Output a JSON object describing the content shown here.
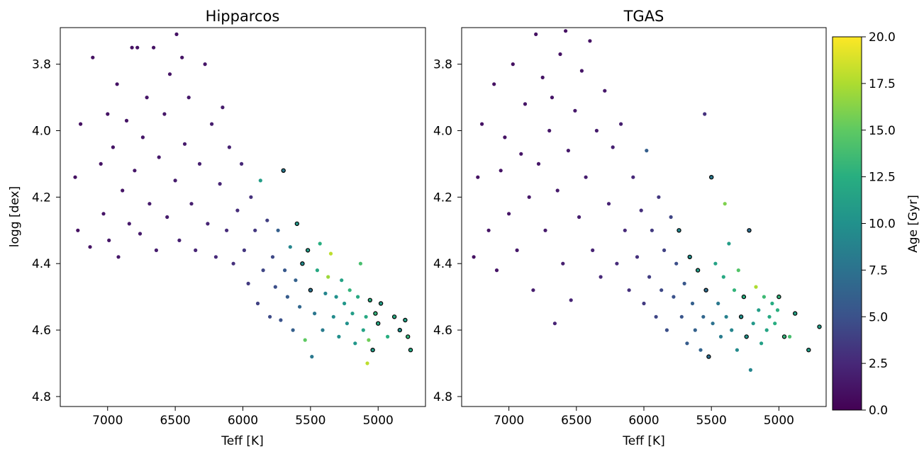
{
  "chart_data": [
    {
      "type": "scatter",
      "title": "Hipparcos",
      "xlabel": "Teff [K]",
      "ylabel": "logg [dex]",
      "xlim": [
        7350,
        4650
      ],
      "ylim": [
        4.83,
        3.69
      ],
      "x_ticks": [
        7000,
        6500,
        6000,
        5500,
        5000
      ],
      "x_tick_labels": [
        "7000",
        "6500",
        "6000",
        "5500",
        "5000"
      ],
      "y_ticks": [
        3.8,
        4.0,
        4.2,
        4.4,
        4.6,
        4.8
      ],
      "y_tick_labels": [
        "3.8",
        "4.0",
        "4.2",
        "4.4",
        "4.6",
        "4.8"
      ],
      "grid": false,
      "color_by": "Age [Gyr]",
      "outlined_points": "black edge",
      "points": [
        [
          7240,
          4.14,
          1.0
        ],
        [
          7220,
          4.3,
          1.0
        ],
        [
          7200,
          3.98,
          1.0
        ],
        [
          7130,
          4.35,
          1.2
        ],
        [
          7110,
          3.78,
          1.0
        ],
        [
          7050,
          4.1,
          1.2
        ],
        [
          7030,
          4.25,
          1.3
        ],
        [
          7000,
          3.95,
          1.1
        ],
        [
          6990,
          4.33,
          1.4
        ],
        [
          6960,
          4.05,
          1.2
        ],
        [
          6930,
          3.86,
          1.1
        ],
        [
          6920,
          4.38,
          1.4
        ],
        [
          6890,
          4.18,
          1.3
        ],
        [
          6860,
          3.97,
          1.2
        ],
        [
          6840,
          4.28,
          1.5
        ],
        [
          6820,
          3.75,
          1.0
        ],
        [
          6800,
          4.12,
          1.4
        ],
        [
          6780,
          3.75,
          1.1
        ],
        [
          6760,
          4.31,
          1.6
        ],
        [
          6740,
          4.02,
          1.4
        ],
        [
          6710,
          3.9,
          1.3
        ],
        [
          6690,
          4.22,
          1.6
        ],
        [
          6660,
          3.75,
          1.1
        ],
        [
          6640,
          4.36,
          1.8
        ],
        [
          6620,
          4.08,
          1.5
        ],
        [
          6580,
          3.95,
          1.4
        ],
        [
          6560,
          4.26,
          1.7
        ],
        [
          6540,
          3.83,
          1.3
        ],
        [
          6500,
          4.15,
          1.7
        ],
        [
          6490,
          3.71,
          1.1
        ],
        [
          6470,
          4.33,
          2.0
        ],
        [
          6450,
          3.78,
          1.2
        ],
        [
          6430,
          4.04,
          1.6
        ],
        [
          6400,
          3.9,
          1.5
        ],
        [
          6380,
          4.22,
          1.9
        ],
        [
          6350,
          4.36,
          2.3
        ],
        [
          6320,
          4.1,
          1.9
        ],
        [
          6280,
          3.8,
          1.3
        ],
        [
          6260,
          4.28,
          2.3
        ],
        [
          6230,
          3.98,
          1.8
        ],
        [
          6200,
          4.38,
          2.6
        ],
        [
          6170,
          4.16,
          2.3
        ],
        [
          6150,
          3.93,
          1.7
        ],
        [
          6120,
          4.3,
          2.7
        ],
        [
          6100,
          4.05,
          2.1
        ],
        [
          6070,
          4.4,
          3.0
        ],
        [
          6040,
          4.24,
          2.8
        ],
        [
          6010,
          4.1,
          2.5
        ],
        [
          5990,
          4.36,
          3.3
        ],
        [
          5960,
          4.46,
          3.6
        ],
        [
          5940,
          4.2,
          3.0
        ],
        [
          5910,
          4.3,
          3.4
        ],
        [
          5890,
          4.52,
          4.0
        ],
        [
          5870,
          4.15,
          11.0
        ],
        [
          5850,
          4.42,
          4.2
        ],
        [
          5820,
          4.27,
          3.8
        ],
        [
          5800,
          4.56,
          4.5
        ],
        [
          5780,
          4.38,
          4.4
        ],
        [
          5760,
          4.47,
          4.8
        ],
        [
          5740,
          4.3,
          6.0
        ],
        [
          5720,
          4.57,
          5.0
        ],
        [
          5700,
          4.12,
          8.0
        ],
        [
          5690,
          4.42,
          5.5
        ],
        [
          5670,
          4.5,
          5.8
        ],
        [
          5650,
          4.35,
          9.0
        ],
        [
          5630,
          4.6,
          6.0
        ],
        [
          5610,
          4.45,
          6.2
        ],
        [
          5600,
          4.28,
          10.5
        ],
        [
          5580,
          4.53,
          6.6
        ],
        [
          5560,
          4.4,
          9.5
        ],
        [
          5540,
          4.63,
          15.0
        ],
        [
          5520,
          4.36,
          11.0
        ],
        [
          5500,
          4.48,
          7.5
        ],
        [
          5490,
          4.68,
          8.0
        ],
        [
          5470,
          4.55,
          7.8
        ],
        [
          5450,
          4.42,
          12.0
        ],
        [
          5430,
          4.34,
          12.5
        ],
        [
          5410,
          4.6,
          8.2
        ],
        [
          5390,
          4.49,
          9.0
        ],
        [
          5370,
          4.44,
          17.0
        ],
        [
          5350,
          4.37,
          18.0
        ],
        [
          5330,
          4.56,
          9.5
        ],
        [
          5310,
          4.5,
          10.0
        ],
        [
          5290,
          4.62,
          9.8
        ],
        [
          5270,
          4.45,
          11.5
        ],
        [
          5250,
          4.52,
          10.5
        ],
        [
          5230,
          4.58,
          10.0
        ],
        [
          5210,
          4.48,
          13.0
        ],
        [
          5190,
          4.55,
          11.0
        ],
        [
          5170,
          4.64,
          10.5
        ],
        [
          5150,
          4.5,
          12.0
        ],
        [
          5130,
          4.4,
          14.0
        ],
        [
          5110,
          4.6,
          11.5
        ],
        [
          5090,
          4.56,
          12.0
        ],
        [
          5080,
          4.7,
          18.0
        ],
        [
          5070,
          4.63,
          15.5
        ],
        [
          5060,
          4.51,
          12.5
        ],
        [
          5040,
          4.66,
          11.0
        ],
        [
          5020,
          4.55,
          13.0
        ],
        [
          5000,
          4.58,
          12.0
        ],
        [
          4980,
          4.52,
          11.0
        ],
        [
          4930,
          4.62,
          12.5
        ],
        [
          4880,
          4.56,
          12.0
        ],
        [
          4840,
          4.6,
          10.0
        ],
        [
          4800,
          4.57,
          11.5
        ],
        [
          4760,
          4.66,
          12.0
        ],
        [
          4780,
          4.62,
          13.0
        ]
      ]
    },
    {
      "type": "scatter",
      "title": "TGAS",
      "xlabel": "Teff [K]",
      "ylabel": "",
      "xlim": [
        7350,
        4650
      ],
      "ylim": [
        4.83,
        3.69
      ],
      "x_ticks": [
        7000,
        6500,
        6000,
        5500,
        5000
      ],
      "x_tick_labels": [
        "7000",
        "6500",
        "6000",
        "5500",
        "5000"
      ],
      "y_ticks": [
        3.8,
        4.0,
        4.2,
        4.4,
        4.6,
        4.8
      ],
      "y_tick_labels": [
        "3.8",
        "4.0",
        "4.2",
        "4.4",
        "4.6",
        "4.8"
      ],
      "grid": false,
      "color_by": "Age [Gyr]",
      "outlined_points": "black edge",
      "points": [
        [
          7260,
          4.38,
          1.0
        ],
        [
          7230,
          4.14,
          1.0
        ],
        [
          7200,
          3.98,
          1.1
        ],
        [
          7150,
          4.3,
          1.2
        ],
        [
          7110,
          3.86,
          1.0
        ],
        [
          7090,
          4.42,
          1.3
        ],
        [
          7060,
          4.12,
          1.2
        ],
        [
          7030,
          4.02,
          1.1
        ],
        [
          7000,
          4.25,
          1.3
        ],
        [
          6970,
          3.8,
          1.0
        ],
        [
          6940,
          4.36,
          1.5
        ],
        [
          6910,
          4.07,
          1.3
        ],
        [
          6880,
          3.92,
          1.2
        ],
        [
          6850,
          4.2,
          1.4
        ],
        [
          6820,
          4.48,
          1.8
        ],
        [
          6800,
          3.71,
          1.0
        ],
        [
          6780,
          4.1,
          1.4
        ],
        [
          6750,
          3.84,
          1.2
        ],
        [
          6730,
          4.3,
          1.6
        ],
        [
          6700,
          4.0,
          1.4
        ],
        [
          6680,
          3.9,
          1.3
        ],
        [
          6660,
          4.58,
          2.2
        ],
        [
          6640,
          4.18,
          1.6
        ],
        [
          6620,
          3.77,
          1.1
        ],
        [
          6600,
          4.4,
          1.9
        ],
        [
          6580,
          3.7,
          1.0
        ],
        [
          6560,
          4.06,
          1.6
        ],
        [
          6540,
          4.51,
          2.3
        ],
        [
          6510,
          3.94,
          1.5
        ],
        [
          6480,
          4.26,
          1.8
        ],
        [
          6460,
          3.82,
          1.3
        ],
        [
          6430,
          4.14,
          1.8
        ],
        [
          6400,
          3.73,
          1.1
        ],
        [
          6380,
          4.36,
          2.2
        ],
        [
          6350,
          4.0,
          1.7
        ],
        [
          6320,
          4.44,
          2.5
        ],
        [
          6290,
          3.88,
          1.5
        ],
        [
          6260,
          4.22,
          2.2
        ],
        [
          6230,
          4.05,
          2.0
        ],
        [
          6200,
          4.4,
          2.7
        ],
        [
          6170,
          3.98,
          1.9
        ],
        [
          6140,
          4.3,
          2.6
        ],
        [
          6110,
          4.48,
          3.0
        ],
        [
          6080,
          4.14,
          2.5
        ],
        [
          6050,
          4.38,
          3.0
        ],
        [
          6020,
          4.24,
          2.9
        ],
        [
          6000,
          4.52,
          3.6
        ],
        [
          5980,
          4.06,
          6.0
        ],
        [
          5960,
          4.44,
          3.7
        ],
        [
          5940,
          4.3,
          3.5
        ],
        [
          5910,
          4.56,
          4.2
        ],
        [
          5890,
          4.2,
          3.4
        ],
        [
          5870,
          4.48,
          4.4
        ],
        [
          5850,
          4.36,
          4.0
        ],
        [
          5830,
          4.6,
          4.8
        ],
        [
          5800,
          4.26,
          4.2
        ],
        [
          5780,
          4.5,
          5.0
        ],
        [
          5760,
          4.4,
          4.8
        ],
        [
          5740,
          4.3,
          9.0
        ],
        [
          5720,
          4.56,
          5.2
        ],
        [
          5700,
          4.46,
          5.4
        ],
        [
          5680,
          4.64,
          5.8
        ],
        [
          5660,
          4.38,
          10.0
        ],
        [
          5640,
          4.52,
          6.0
        ],
        [
          5620,
          4.6,
          6.2
        ],
        [
          5600,
          4.42,
          11.0
        ],
        [
          5580,
          4.66,
          6.4
        ],
        [
          5560,
          4.56,
          6.6
        ],
        [
          5550,
          3.95,
          3.0
        ],
        [
          5540,
          4.48,
          7.0
        ],
        [
          5520,
          4.68,
          7.2
        ],
        [
          5500,
          4.14,
          8.0
        ],
        [
          5490,
          4.58,
          7.4
        ],
        [
          5470,
          4.4,
          11.5
        ],
        [
          5450,
          4.52,
          8.0
        ],
        [
          5430,
          4.62,
          8.2
        ],
        [
          5410,
          4.44,
          12.0
        ],
        [
          5400,
          4.22,
          16.0
        ],
        [
          5390,
          4.56,
          8.6
        ],
        [
          5370,
          4.34,
          11.0
        ],
        [
          5350,
          4.6,
          9.0
        ],
        [
          5330,
          4.48,
          13.0
        ],
        [
          5310,
          4.66,
          9.4
        ],
        [
          5300,
          4.42,
          14.5
        ],
        [
          5280,
          4.56,
          9.8
        ],
        [
          5260,
          4.5,
          12.5
        ],
        [
          5240,
          4.62,
          10.2
        ],
        [
          5220,
          4.3,
          7.0
        ],
        [
          5210,
          4.72,
          9.0
        ],
        [
          5190,
          4.58,
          10.6
        ],
        [
          5170,
          4.47,
          17.5
        ],
        [
          5150,
          4.54,
          11.0
        ],
        [
          5130,
          4.64,
          11.2
        ],
        [
          5110,
          4.5,
          13.5
        ],
        [
          5090,
          4.6,
          11.6
        ],
        [
          5070,
          4.56,
          12.0
        ],
        [
          5050,
          4.52,
          12.2
        ],
        [
          5030,
          4.58,
          12.4
        ],
        [
          5010,
          4.54,
          12.6
        ],
        [
          5000,
          4.5,
          13.0
        ],
        [
          4960,
          4.62,
          13.0
        ],
        [
          4920,
          4.62,
          14.0
        ],
        [
          4880,
          4.55,
          11.5
        ],
        [
          4780,
          4.66,
          11.0
        ],
        [
          4700,
          4.59,
          11.0
        ]
      ]
    }
  ],
  "colorbar": {
    "label": "Age [Gyr]",
    "colormap": "viridis",
    "range": [
      0.0,
      20.0
    ],
    "ticks": [
      0.0,
      2.5,
      5.0,
      7.5,
      10.0,
      12.5,
      15.0,
      17.5,
      20.0
    ],
    "tick_labels": [
      "0.0",
      "2.5",
      "5.0",
      "7.5",
      "10.0",
      "12.5",
      "15.0",
      "17.5",
      "20.0"
    ],
    "colors": [
      "#440154",
      "#472878",
      "#3b528b",
      "#2c728e",
      "#21918c",
      "#28ae80",
      "#5ec962",
      "#addc30",
      "#fde725"
    ]
  }
}
